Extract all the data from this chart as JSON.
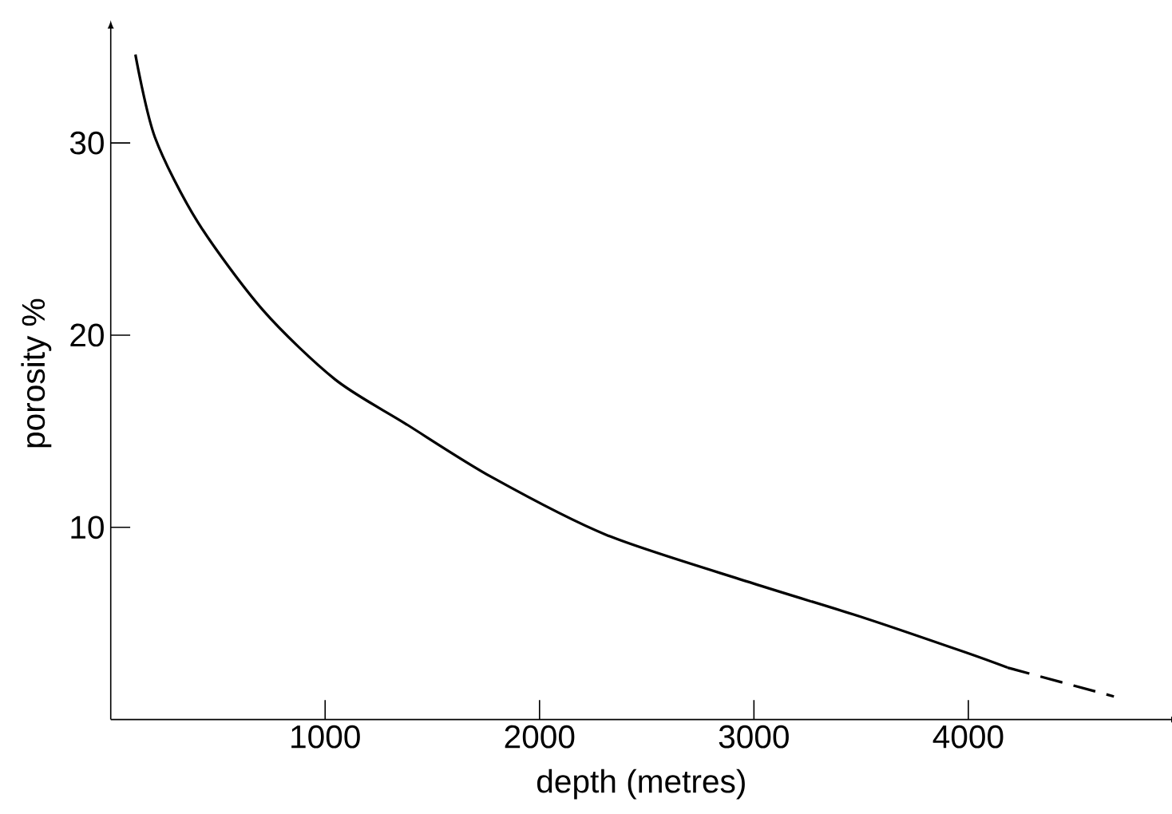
{
  "chart_data": {
    "type": "line",
    "xlabel": "depth (metres)",
    "ylabel": "porosity %",
    "xlim": [
      0,
      4950
    ],
    "ylim": [
      0,
      36
    ],
    "xticks": [
      1000,
      2000,
      3000,
      4000
    ],
    "yticks": [
      10,
      20,
      30
    ],
    "grid": false,
    "marker": "none",
    "series": [
      {
        "color": "#000000",
        "line_style": "solid",
        "x": [
          115,
          206,
          405,
          710,
          1046,
          1374,
          1779,
          2313,
          2992,
          3511,
          3985,
          4183
        ],
        "values": [
          34.6,
          30.3,
          25.9,
          21.3,
          17.7,
          15.4,
          12.6,
          9.6,
          7.1,
          5.3,
          3.5,
          2.7
        ]
      },
      {
        "color": "#000000",
        "line_style": "dashed",
        "x": [
          4183,
          4679
        ],
        "values": [
          2.7,
          1.2
        ]
      }
    ]
  }
}
